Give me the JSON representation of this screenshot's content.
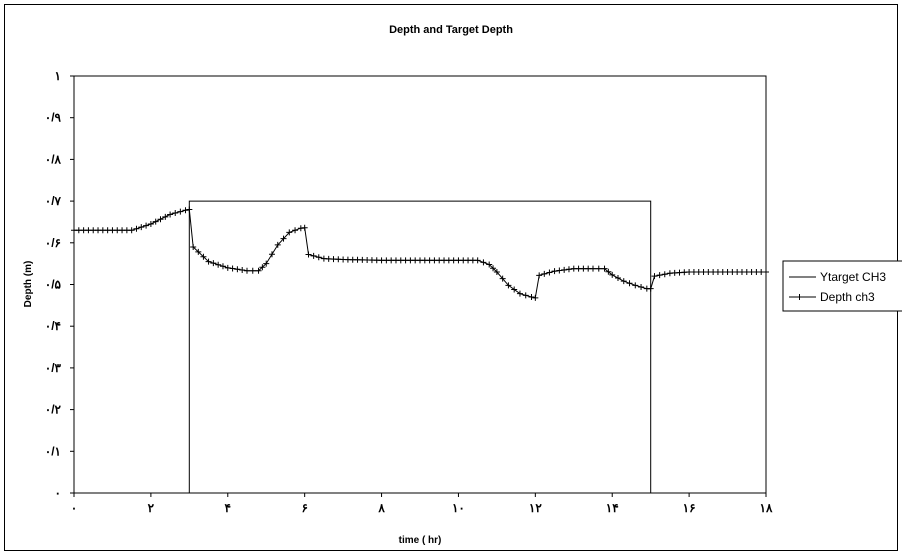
{
  "chart_data": {
    "type": "line",
    "title": "Depth and Target Depth",
    "xlabel": "time ( hr)",
    "ylabel": "Depth (m)",
    "xlim": [
      0,
      18
    ],
    "ylim": [
      0,
      1
    ],
    "x_tick_values": [
      0,
      2,
      4,
      6,
      8,
      10,
      12,
      14,
      16,
      18
    ],
    "x_tick_labels": [
      "٠",
      "٢",
      "۴",
      "۶",
      "٨",
      "١٠",
      "١٢",
      "١۴",
      "١۶",
      "١٨"
    ],
    "y_tick_values": [
      0,
      0.1,
      0.2,
      0.3,
      0.4,
      0.5,
      0.6,
      0.7,
      0.8,
      0.9,
      1
    ],
    "y_tick_labels": [
      "٠",
      "٠/١",
      "٠/٢",
      "٠/٣",
      "٠/۴",
      "٠/۵",
      "٠/۶",
      "٠/٧",
      "٠/٨",
      "٠/٩",
      "١"
    ],
    "grid": false,
    "legend_position": "right",
    "series": [
      {
        "name": "Ytarget CH3",
        "color": "#000000",
        "marker": "none",
        "x": [
          3,
          3,
          15,
          15
        ],
        "y": [
          0,
          0.7,
          0.7,
          0
        ]
      },
      {
        "name": "Depth ch3",
        "color": "#000000",
        "marker": "plus",
        "x": [
          0,
          1.5,
          2,
          2.5,
          2.9,
          3.0,
          3.1,
          3.5,
          4.0,
          4.5,
          4.8,
          5.0,
          5.3,
          5.6,
          5.9,
          6.0,
          6.1,
          6.5,
          7.0,
          8.0,
          9.0,
          10.0,
          10.5,
          10.8,
          11.0,
          11.3,
          11.6,
          11.9,
          12.0,
          12.1,
          12.5,
          13.0,
          13.5,
          13.8,
          14.0,
          14.3,
          14.6,
          14.9,
          15.0,
          15.1,
          15.5,
          16.0,
          17.0,
          18.0
        ],
        "y": [
          0.63,
          0.63,
          0.645,
          0.668,
          0.678,
          0.68,
          0.59,
          0.555,
          0.54,
          0.533,
          0.533,
          0.55,
          0.595,
          0.625,
          0.635,
          0.636,
          0.572,
          0.562,
          0.56,
          0.558,
          0.558,
          0.558,
          0.558,
          0.548,
          0.53,
          0.498,
          0.478,
          0.47,
          0.468,
          0.522,
          0.532,
          0.538,
          0.538,
          0.538,
          0.523,
          0.508,
          0.498,
          0.49,
          0.49,
          0.52,
          0.527,
          0.53,
          0.53,
          0.53
        ]
      }
    ]
  }
}
